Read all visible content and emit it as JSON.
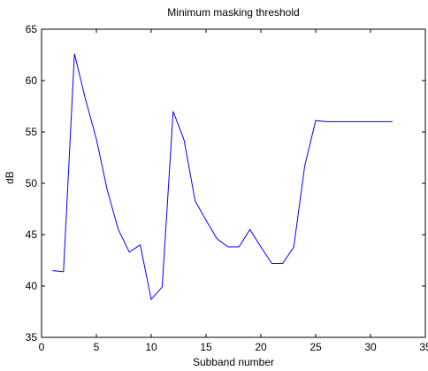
{
  "chart_data": {
    "type": "line",
    "title": "Minimum masking threshold",
    "xlabel": "Subband number",
    "ylabel": "dB",
    "xlim": [
      0,
      35
    ],
    "ylim": [
      35,
      65
    ],
    "xticks": [
      0,
      5,
      10,
      15,
      20,
      25,
      30,
      35
    ],
    "yticks": [
      35,
      40,
      45,
      50,
      55,
      60,
      65
    ],
    "grid": false,
    "series": [
      {
        "color": "#0000ff",
        "x": [
          1,
          2,
          3,
          4,
          5,
          6,
          7,
          8,
          9,
          10,
          11,
          12,
          13,
          14,
          15,
          16,
          17,
          18,
          19,
          20,
          21,
          22,
          23,
          24,
          25,
          26,
          27,
          28,
          29,
          30,
          31,
          32
        ],
        "y": [
          41.5,
          41.4,
          62.6,
          58.2,
          54.3,
          49.3,
          45.5,
          43.3,
          44.0,
          38.7,
          39.9,
          57.0,
          54.2,
          48.3,
          46.4,
          44.6,
          43.8,
          43.8,
          45.5,
          43.8,
          42.2,
          42.2,
          43.8,
          51.7,
          56.1,
          56.0,
          56.0,
          56.0,
          56.0,
          56.0,
          56.0,
          56.0
        ]
      }
    ]
  }
}
